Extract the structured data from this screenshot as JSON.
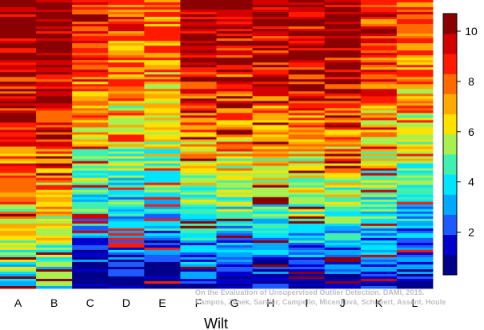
{
  "chart_data": {
    "type": "heatmap",
    "xlabel": "Wilt",
    "ylabel": "",
    "title": "",
    "columns": [
      "A",
      "B",
      "C",
      "D",
      "E",
      "F",
      "G",
      "H",
      "I",
      "J",
      "K",
      "L"
    ],
    "colorbar": {
      "range": [
        0.3,
        10.7
      ],
      "ticks": [
        2,
        4,
        6,
        8,
        10
      ]
    },
    "colormap": [
      "#00008B",
      "#0000CD",
      "#1E5AFF",
      "#00A8FF",
      "#00E5FF",
      "#40F0B0",
      "#A8F050",
      "#FFE100",
      "#FFAA00",
      "#FF6A00",
      "#FF1A00",
      "#D40000",
      "#8B0000"
    ],
    "rank_ranges": [
      [
        4,
        10.5
      ],
      [
        4,
        10.5
      ],
      [
        0.5,
        9
      ],
      [
        0.5,
        8
      ],
      [
        0.5,
        8
      ],
      [
        1,
        10
      ],
      [
        1,
        10
      ],
      [
        1,
        10
      ],
      [
        1,
        10
      ],
      [
        1,
        10.5
      ],
      [
        1,
        9
      ],
      [
        1,
        8
      ]
    ]
  },
  "watermark": {
    "line1": "On the Evaluation of Unsupervised Outlier Detection. DAMI, 2015.",
    "line2": "Campos, Zimek, Sander, Campello, Micenková, Schubert, Assent, Houle"
  }
}
